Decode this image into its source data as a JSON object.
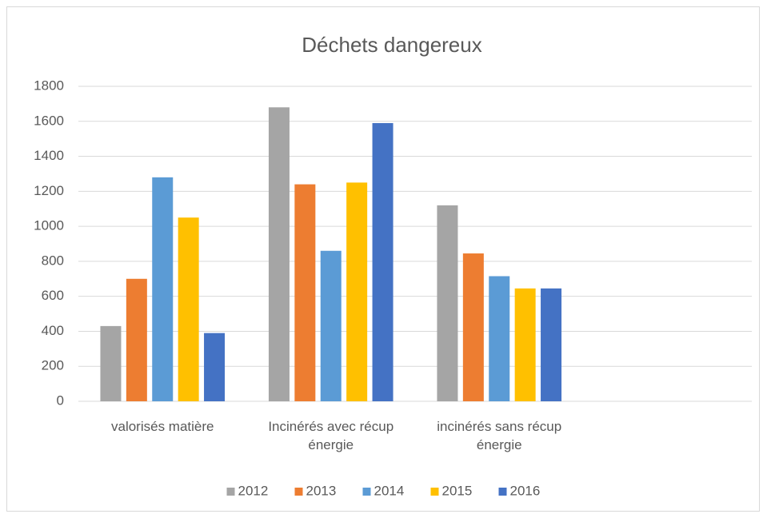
{
  "chart_data": {
    "type": "bar",
    "title": "Déchets dangereux",
    "categories": [
      "valorisés matière",
      "Incinérés avec récup énergie",
      "incinérés sans récup énergie",
      null
    ],
    "series": [
      {
        "name": "2012",
        "color": "#a5a5a5",
        "values": [
          430,
          1680,
          1120,
          null
        ]
      },
      {
        "name": "2013",
        "color": "#ed7d31",
        "values": [
          700,
          1240,
          845,
          null
        ]
      },
      {
        "name": "2014",
        "color": "#5b9bd5",
        "values": [
          1280,
          860,
          715,
          null
        ]
      },
      {
        "name": "2015",
        "color": "#ffc000",
        "values": [
          1050,
          1250,
          645,
          null
        ]
      },
      {
        "name": "2016",
        "color": "#4472c4",
        "values": [
          390,
          1590,
          645,
          null
        ]
      }
    ],
    "ylim": [
      0,
      1800
    ],
    "yticks": [
      0,
      200,
      400,
      600,
      800,
      1000,
      1200,
      1400,
      1600,
      1800
    ],
    "grid": true,
    "legend": "bottom"
  }
}
